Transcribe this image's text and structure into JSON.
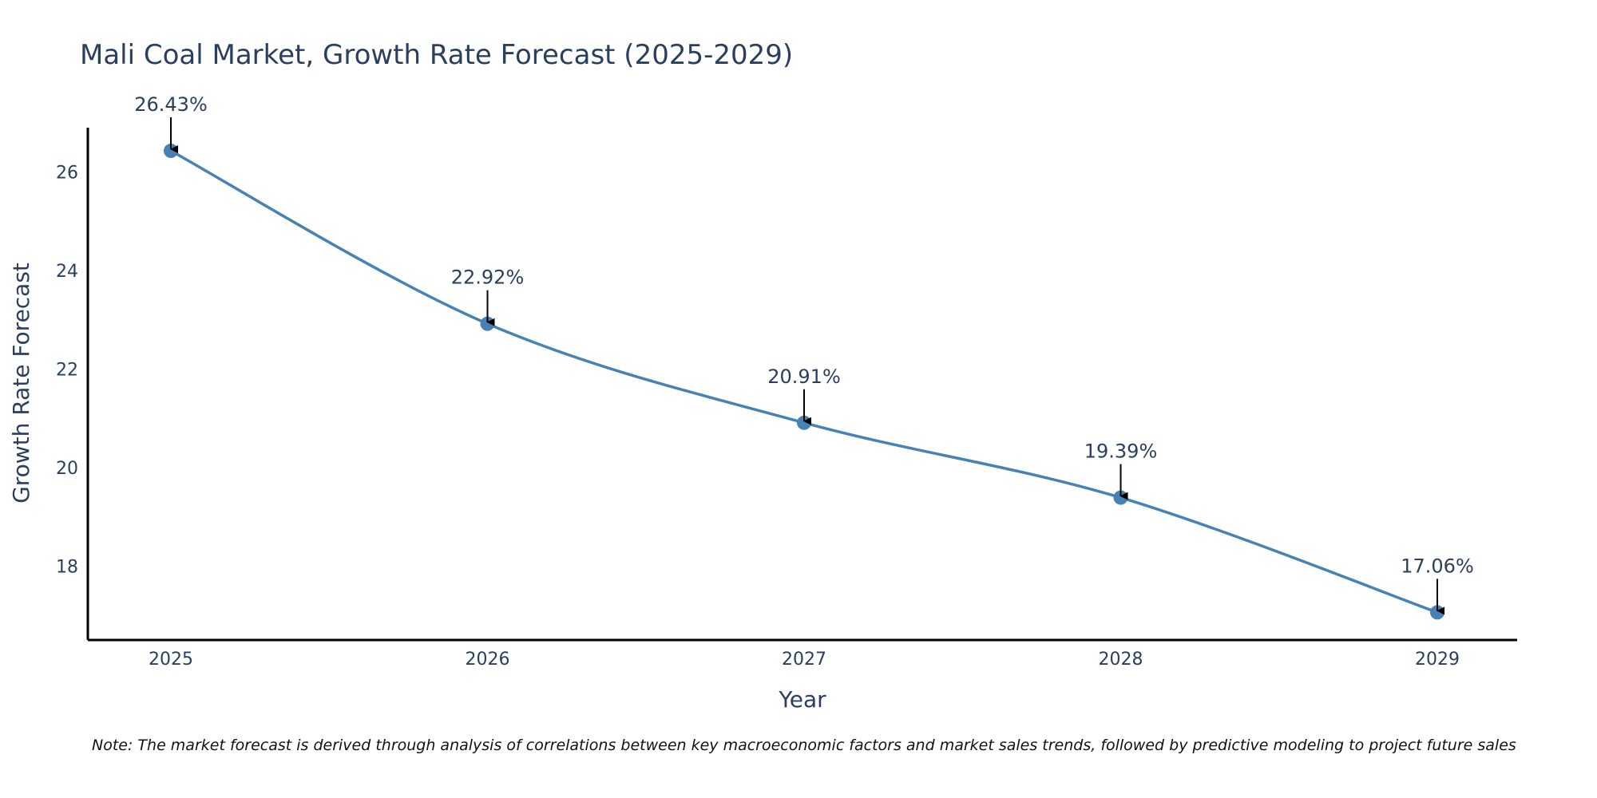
{
  "chart_data": {
    "type": "line",
    "title": "Mali Coal Market, Growth Rate Forecast (2025-2029)",
    "xlabel": "Year",
    "ylabel": "Growth Rate Forecast",
    "categories": [
      "2025",
      "2026",
      "2027",
      "2028",
      "2029"
    ],
    "series": [
      {
        "name": "Growth Rate Forecast",
        "values": [
          26.43,
          22.92,
          20.91,
          19.39,
          17.06
        ],
        "labels": [
          "26.43%",
          "22.92%",
          "20.91%",
          "19.39%",
          "17.06%"
        ]
      }
    ],
    "yticks": [
      18,
      20,
      22,
      24,
      26
    ],
    "ylim": [
      16.5,
      26.9
    ],
    "grid": false,
    "line_color": "#4682b4",
    "marker_color": "#4682b4",
    "axis_color": "#000000",
    "text_color": "#2a3f5f",
    "arrow_color": "#000000"
  },
  "note": "Note: The market forecast is derived through analysis of correlations between key macroeconomic factors and market sales trends, followed by predictive modeling to project future sales"
}
